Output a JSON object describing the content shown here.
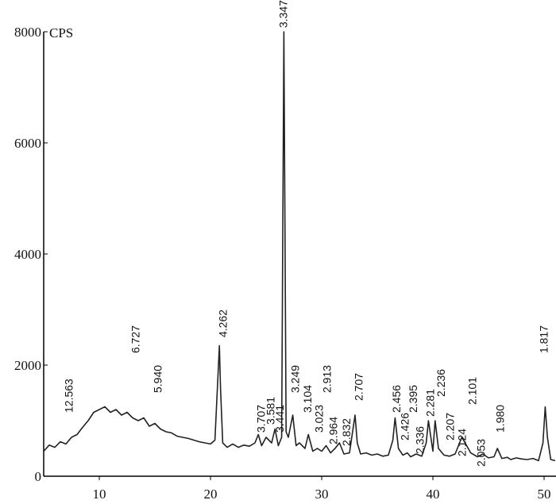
{
  "chart_data": {
    "type": "line",
    "y_label": "CPS",
    "xlim": [
      5,
      51
    ],
    "ylim": [
      0,
      8000
    ],
    "xticks": [
      10,
      20,
      30,
      40,
      50
    ],
    "yticks": [
      0,
      2000,
      4000,
      6000,
      8000
    ],
    "series": [
      {
        "color": "#222222",
        "x": [
          5,
          5.5,
          6,
          6.5,
          7,
          7.5,
          8,
          8.5,
          9,
          9.5,
          10,
          10.5,
          11,
          11.5,
          12,
          12.5,
          13,
          13.5,
          14,
          14.5,
          15,
          15.5,
          16,
          16.5,
          17,
          17.5,
          18,
          18.5,
          19,
          19.5,
          20,
          20.4,
          20.8,
          20.9,
          21.1,
          21.5,
          22,
          22.5,
          23,
          23.5,
          24,
          24.3,
          24.6,
          25,
          25.5,
          25.8,
          26.1,
          26.4,
          26.6,
          26.8,
          27,
          27.4,
          27.7,
          28,
          28.5,
          28.8,
          29.2,
          29.6,
          30,
          30.4,
          30.8,
          31.2,
          31.6,
          32,
          32.5,
          33,
          33.2,
          33.5,
          34,
          34.5,
          35,
          35.5,
          36,
          36.4,
          36.6,
          36.9,
          37.3,
          37.7,
          38,
          38.5,
          39,
          39.4,
          39.6,
          40,
          40.2,
          40.5,
          41,
          41.5,
          42,
          42.3,
          42.6,
          42.9,
          43.4,
          44,
          44.5,
          45,
          45.5,
          45.8,
          46.2,
          46.7,
          47,
          47.5,
          48,
          48.5,
          49,
          49.5,
          49.9,
          50.1,
          50.3,
          50.6,
          51
        ],
        "values": [
          450,
          560,
          520,
          620,
          580,
          700,
          750,
          880,
          1000,
          1150,
          1200,
          1250,
          1150,
          1200,
          1100,
          1150,
          1050,
          1000,
          1050,
          900,
          950,
          850,
          800,
          780,
          720,
          700,
          680,
          650,
          620,
          600,
          580,
          650,
          2350,
          1600,
          600,
          520,
          580,
          520,
          560,
          540,
          600,
          750,
          550,
          700,
          600,
          850,
          550,
          700,
          8000,
          800,
          700,
          1100,
          550,
          600,
          500,
          750,
          450,
          500,
          450,
          550,
          420,
          500,
          600,
          400,
          420,
          1100,
          600,
          400,
          420,
          380,
          400,
          360,
          380,
          650,
          1050,
          500,
          380,
          420,
          350,
          400,
          360,
          600,
          1000,
          450,
          1000,
          500,
          380,
          360,
          400,
          550,
          700,
          600,
          420,
          350,
          400,
          330,
          350,
          500,
          320,
          340,
          300,
          330,
          310,
          300,
          320,
          280,
          600,
          1250,
          700,
          300,
          280
        ]
      }
    ],
    "annotations": [
      {
        "label": "12.563",
        "x": 7.36,
        "y": 1143
      },
      {
        "label": "6.727",
        "x": 13.36,
        "y": 2214
      },
      {
        "label": "5.940",
        "x": 15.36,
        "y": 1500
      },
      {
        "label": "4.262",
        "x": 21.21,
        "y": 2500
      },
      {
        "label": "3.707",
        "x": 24.64,
        "y": 786
      },
      {
        "label": "3.581",
        "x": 25.5,
        "y": 929
      },
      {
        "label": "3.441",
        "x": 26.29,
        "y": 786
      },
      {
        "label": "3.347",
        "x": 26.64,
        "y": 8070
      },
      {
        "label": "3.249",
        "x": 27.71,
        "y": 1500
      },
      {
        "label": "3.104",
        "x": 28.79,
        "y": 1143
      },
      {
        "label": "3.023",
        "x": 29.86,
        "y": 786
      },
      {
        "label": "2.913",
        "x": 30.57,
        "y": 1500
      },
      {
        "label": "2.964",
        "x": 31.14,
        "y": 571
      },
      {
        "label": "2.832",
        "x": 32.29,
        "y": 543
      },
      {
        "label": "2.707",
        "x": 33.43,
        "y": 1357
      },
      {
        "label": "2.456",
        "x": 36.79,
        "y": 1143
      },
      {
        "label": "2.426",
        "x": 37.57,
        "y": 643
      },
      {
        "label": "2.395",
        "x": 38.29,
        "y": 1143
      },
      {
        "label": "2.336",
        "x": 38.93,
        "y": 400
      },
      {
        "label": "2.281",
        "x": 39.86,
        "y": 1071
      },
      {
        "label": "2.236",
        "x": 40.79,
        "y": 1429
      },
      {
        "label": "2.207",
        "x": 41.64,
        "y": 643
      },
      {
        "label": "2.124",
        "x": 42.71,
        "y": 357
      },
      {
        "label": "2.101",
        "x": 43.64,
        "y": 1286
      },
      {
        "label": "2.053",
        "x": 44.43,
        "y": 171
      },
      {
        "label": "1.980",
        "x": 46.14,
        "y": 786
      },
      {
        "label": "1.817",
        "x": 50.07,
        "y": 2214
      }
    ]
  }
}
